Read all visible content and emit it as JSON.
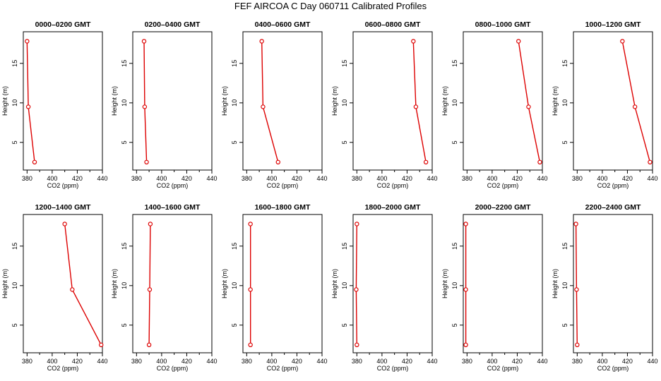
{
  "title": "FEF  AIRCOA C  Day 060711  Calibrated Profiles",
  "colors": {
    "profile": "#dd0000",
    "axis": "#000000",
    "background": "#ffffff"
  },
  "chart_data": [
    {
      "type": "line",
      "title": "0000–0200 GMT",
      "xlabel": "CO2 (ppm)",
      "ylabel": "Height (m)",
      "xlim": [
        377,
        440
      ],
      "ylim": [
        1.5,
        19
      ],
      "xticks": [
        380,
        400,
        420,
        440
      ],
      "yticks": [
        5,
        10,
        15
      ],
      "grid": false,
      "x": [
        380,
        381,
        386
      ],
      "y": [
        17.8,
        9.5,
        2.5
      ]
    },
    {
      "type": "line",
      "title": "0200–0400 GMT",
      "xlabel": "CO2 (ppm)",
      "ylabel": "Height (m)",
      "xlim": [
        377,
        440
      ],
      "ylim": [
        1.5,
        19
      ],
      "xticks": [
        380,
        400,
        420,
        440
      ],
      "yticks": [
        5,
        10,
        15
      ],
      "grid": false,
      "x": [
        386,
        386.5,
        388
      ],
      "y": [
        17.8,
        9.5,
        2.5
      ]
    },
    {
      "type": "line",
      "title": "0400–0600 GMT",
      "xlabel": "CO2 (ppm)",
      "ylabel": "Height (m)",
      "xlim": [
        377,
        440
      ],
      "ylim": [
        1.5,
        19
      ],
      "xticks": [
        380,
        400,
        420,
        440
      ],
      "yticks": [
        5,
        10,
        15
      ],
      "grid": false,
      "x": [
        392,
        393,
        405
      ],
      "y": [
        17.8,
        9.5,
        2.5
      ]
    },
    {
      "type": "line",
      "title": "0600–0800 GMT",
      "xlabel": "CO2 (ppm)",
      "ylabel": "Height (m)",
      "xlim": [
        377,
        440
      ],
      "ylim": [
        1.5,
        19
      ],
      "xticks": [
        380,
        400,
        420,
        440
      ],
      "yticks": [
        5,
        10,
        15
      ],
      "grid": false,
      "x": [
        425,
        427,
        435
      ],
      "y": [
        17.8,
        9.5,
        2.5
      ]
    },
    {
      "type": "line",
      "title": "0800–1000 GMT",
      "xlabel": "CO2 (ppm)",
      "ylabel": "Height (m)",
      "xlim": [
        377,
        440
      ],
      "ylim": [
        1.5,
        19
      ],
      "xticks": [
        380,
        400,
        420,
        440
      ],
      "yticks": [
        5,
        10,
        15
      ],
      "grid": false,
      "x": [
        421,
        429,
        438
      ],
      "y": [
        17.8,
        9.5,
        2.5
      ]
    },
    {
      "type": "line",
      "title": "1000–1200 GMT",
      "xlabel": "CO2 (ppm)",
      "ylabel": "Height (m)",
      "xlim": [
        377,
        440
      ],
      "ylim": [
        1.5,
        19
      ],
      "xticks": [
        380,
        400,
        420,
        440
      ],
      "yticks": [
        5,
        10,
        15
      ],
      "grid": false,
      "x": [
        416,
        426,
        438
      ],
      "y": [
        17.8,
        9.5,
        2.5
      ]
    },
    {
      "type": "line",
      "title": "1200–1400 GMT",
      "xlabel": "CO2 (ppm)",
      "ylabel": "Height (m)",
      "xlim": [
        377,
        440
      ],
      "ylim": [
        1.5,
        19
      ],
      "xticks": [
        380,
        400,
        420,
        440
      ],
      "yticks": [
        5,
        10,
        15
      ],
      "grid": false,
      "x": [
        410,
        416,
        439
      ],
      "y": [
        17.8,
        9.5,
        2.5
      ]
    },
    {
      "type": "line",
      "title": "1400–1600 GMT",
      "xlabel": "CO2 (ppm)",
      "ylabel": "Height (m)",
      "xlim": [
        377,
        440
      ],
      "ylim": [
        1.5,
        19
      ],
      "xticks": [
        380,
        400,
        420,
        440
      ],
      "yticks": [
        5,
        10,
        15
      ],
      "grid": false,
      "x": [
        391,
        390.5,
        390
      ],
      "y": [
        17.8,
        9.5,
        2.5
      ]
    },
    {
      "type": "line",
      "title": "1600–1800 GMT",
      "xlabel": "CO2 (ppm)",
      "ylabel": "Height (m)",
      "xlim": [
        377,
        440
      ],
      "ylim": [
        1.5,
        19
      ],
      "xticks": [
        380,
        400,
        420,
        440
      ],
      "yticks": [
        5,
        10,
        15
      ],
      "grid": false,
      "x": [
        383,
        383,
        383
      ],
      "y": [
        17.8,
        9.5,
        2.5
      ]
    },
    {
      "type": "line",
      "title": "1800–2000 GMT",
      "xlabel": "CO2 (ppm)",
      "ylabel": "Height (m)",
      "xlim": [
        377,
        440
      ],
      "ylim": [
        1.5,
        19
      ],
      "xticks": [
        380,
        400,
        420,
        440
      ],
      "yticks": [
        5,
        10,
        15
      ],
      "grid": false,
      "x": [
        380,
        379.5,
        380
      ],
      "y": [
        17.8,
        9.5,
        2.5
      ]
    },
    {
      "type": "line",
      "title": "2000–2200 GMT",
      "xlabel": "CO2 (ppm)",
      "ylabel": "Height (m)",
      "xlim": [
        377,
        440
      ],
      "ylim": [
        1.5,
        19
      ],
      "xticks": [
        380,
        400,
        420,
        440
      ],
      "yticks": [
        5,
        10,
        15
      ],
      "grid": false,
      "x": [
        379,
        379,
        379
      ],
      "y": [
        17.8,
        9.5,
        2.5
      ]
    },
    {
      "type": "line",
      "title": "2200–2400 GMT",
      "xlabel": "CO2 (ppm)",
      "ylabel": "Height (m)",
      "xlim": [
        377,
        440
      ],
      "ylim": [
        1.5,
        19
      ],
      "xticks": [
        380,
        400,
        420,
        440
      ],
      "yticks": [
        5,
        10,
        15
      ],
      "grid": false,
      "x": [
        379,
        379.5,
        380
      ],
      "y": [
        17.8,
        9.5,
        2.5
      ]
    }
  ]
}
